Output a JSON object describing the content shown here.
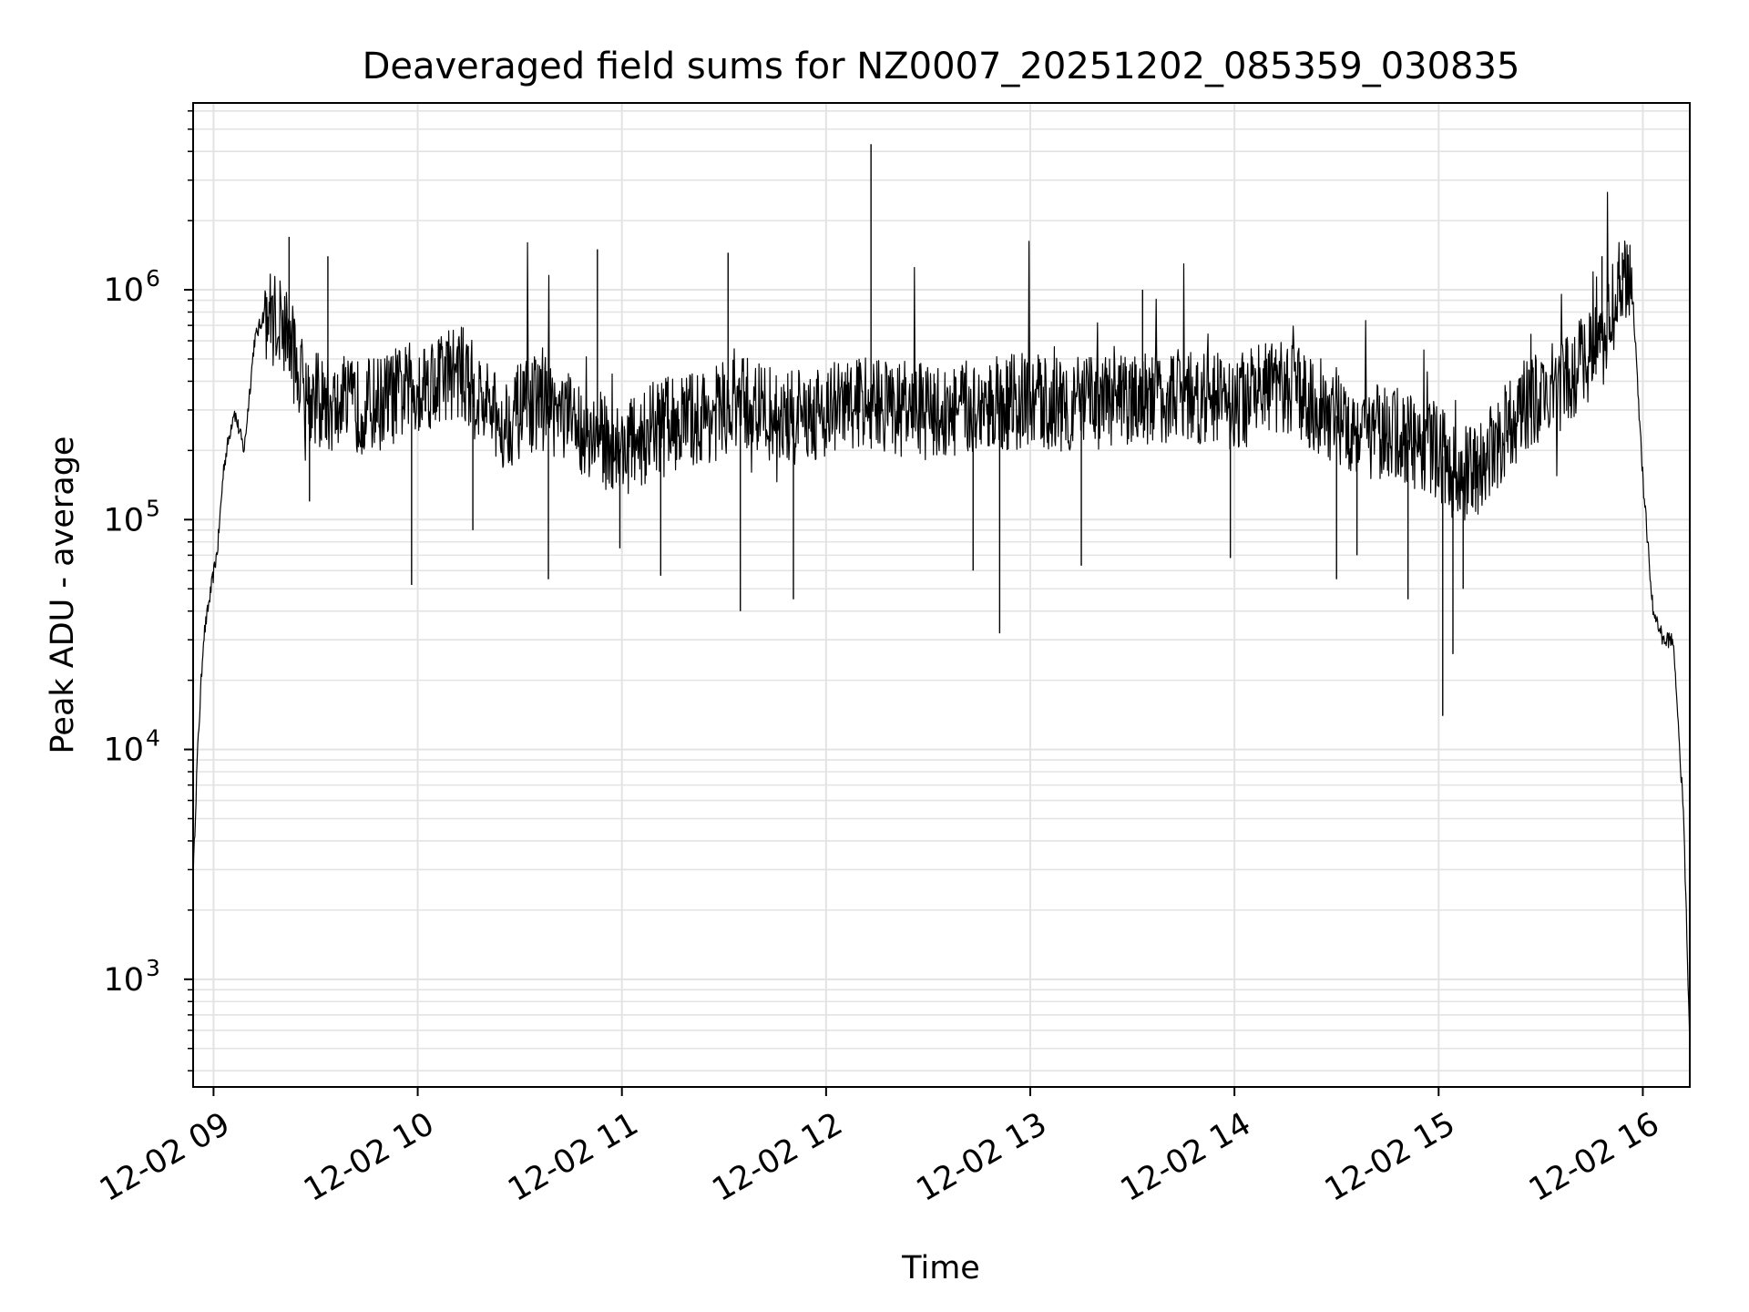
{
  "chart_data": {
    "type": "line",
    "title": "Deaveraged field sums for NZ0007_20251202_085359_030835",
    "xlabel": "Time",
    "ylabel": "Peak ADU - average",
    "yscale": "log",
    "ylim": [
      340,
      6500000
    ],
    "xlim_hours": [
      8.9,
      16.23
    ],
    "grid": true,
    "line_color": "#000000",
    "grid_color": "#e3e3e3",
    "x_ticks": [
      {
        "value": 9,
        "label": "12-02 09"
      },
      {
        "value": 10,
        "label": "12-02 10"
      },
      {
        "value": 11,
        "label": "12-02 11"
      },
      {
        "value": 12,
        "label": "12-02 12"
      },
      {
        "value": 13,
        "label": "12-02 13"
      },
      {
        "value": 14,
        "label": "12-02 14"
      },
      {
        "value": 15,
        "label": "12-02 15"
      },
      {
        "value": 16,
        "label": "12-02 16"
      }
    ],
    "y_ticks": [
      {
        "value": 1000,
        "base": "10",
        "exp": "3"
      },
      {
        "value": 10000,
        "base": "10",
        "exp": "4"
      },
      {
        "value": 100000,
        "base": "10",
        "exp": "5"
      },
      {
        "value": 1000000,
        "base": "10",
        "exp": "6"
      }
    ],
    "series": [
      {
        "name": "field sums",
        "x_hours": [
          8.9,
          8.92,
          8.95,
          8.98,
          9.02,
          9.05,
          9.1,
          9.15,
          9.2,
          9.25,
          9.3,
          9.35,
          9.45,
          9.6,
          9.8,
          10.0,
          10.2,
          10.4,
          10.6,
          10.8,
          11.0,
          11.2,
          11.4,
          11.6,
          11.8,
          12.0,
          12.2,
          12.4,
          12.6,
          12.8,
          13.0,
          13.2,
          13.4,
          13.6,
          13.8,
          14.0,
          14.2,
          14.4,
          14.6,
          14.8,
          15.0,
          15.1,
          15.2,
          15.4,
          15.6,
          15.8,
          15.9,
          15.95,
          16.0,
          16.05,
          16.1,
          16.15,
          16.2,
          16.23
        ],
        "values": [
          2700,
          9000,
          30000,
          45000,
          75000,
          170000,
          300000,
          200000,
          600000,
          800000,
          750000,
          700000,
          350000,
          300000,
          320000,
          380000,
          450000,
          260000,
          330000,
          250000,
          200000,
          260000,
          280000,
          320000,
          270000,
          300000,
          330000,
          300000,
          290000,
          320000,
          330000,
          320000,
          320000,
          340000,
          350000,
          320000,
          380000,
          320000,
          250000,
          230000,
          200000,
          150000,
          170000,
          300000,
          380000,
          600000,
          1100000,
          950000,
          150000,
          40000,
          30000,
          30000,
          5000,
          520
        ]
      }
    ],
    "spikes": [
      {
        "x_hours": 9.37,
        "value": 1700000
      },
      {
        "x_hours": 9.56,
        "value": 1400000
      },
      {
        "x_hours": 9.47,
        "value": 120000
      },
      {
        "x_hours": 9.97,
        "value": 52000
      },
      {
        "x_hours": 10.27,
        "value": 90000
      },
      {
        "x_hours": 10.64,
        "value": 55000
      },
      {
        "x_hours": 10.88,
        "value": 1500000
      },
      {
        "x_hours": 10.99,
        "value": 75000
      },
      {
        "x_hours": 11.19,
        "value": 57000
      },
      {
        "x_hours": 11.52,
        "value": 1450000
      },
      {
        "x_hours": 11.58,
        "value": 40000
      },
      {
        "x_hours": 11.84,
        "value": 45000
      },
      {
        "x_hours": 12.22,
        "value": 4300000
      },
      {
        "x_hours": 12.72,
        "value": 60000
      },
      {
        "x_hours": 12.85,
        "value": 32000
      },
      {
        "x_hours": 13.25,
        "value": 63000
      },
      {
        "x_hours": 13.55,
        "value": 1000000
      },
      {
        "x_hours": 13.98,
        "value": 68000
      },
      {
        "x_hours": 14.5,
        "value": 55000
      },
      {
        "x_hours": 14.6,
        "value": 70000
      },
      {
        "x_hours": 14.85,
        "value": 45000
      },
      {
        "x_hours": 15.02,
        "value": 14000
      },
      {
        "x_hours": 15.07,
        "value": 26000
      },
      {
        "x_hours": 15.12,
        "value": 50000
      },
      {
        "x_hours": 15.8,
        "value": 1400000
      },
      {
        "x_hours": 15.9,
        "value": 1450000
      }
    ]
  }
}
